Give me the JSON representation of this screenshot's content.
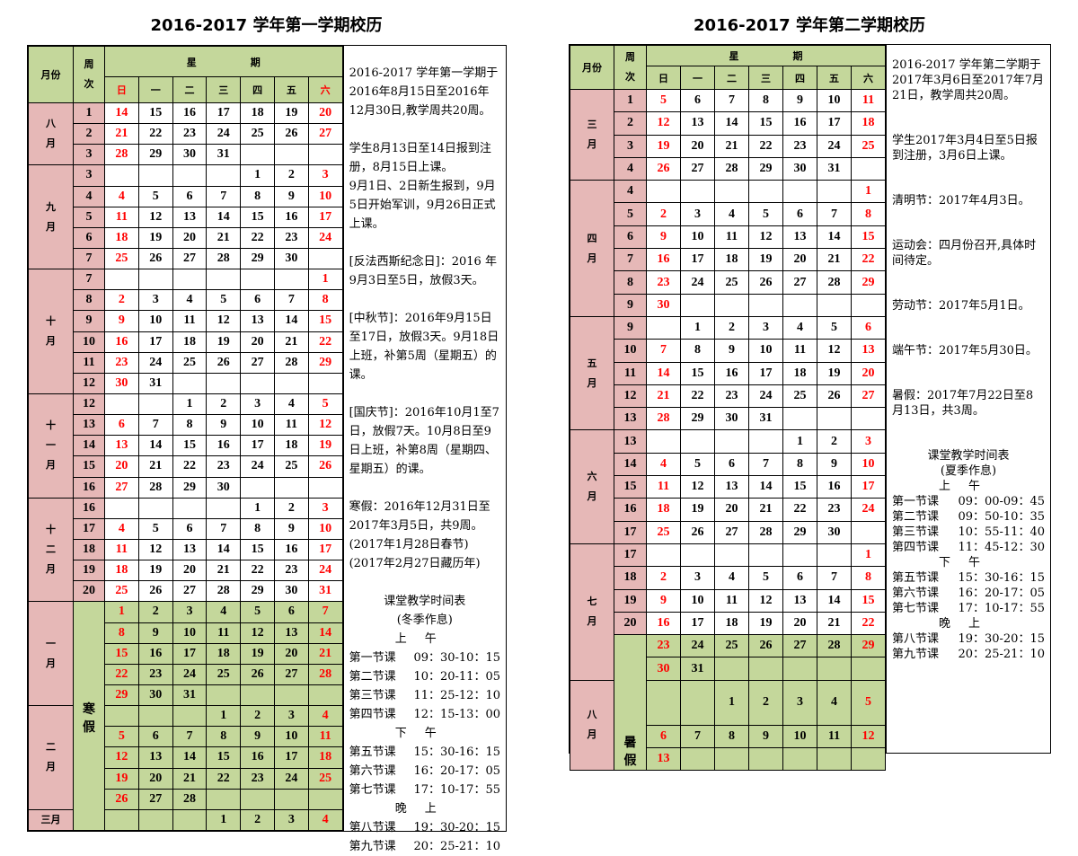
{
  "headers": {
    "month": "月份",
    "week": "周次",
    "weekday_group": "星期",
    "weekdays": [
      "日",
      "一",
      "二",
      "三",
      "四",
      "五",
      "六"
    ]
  },
  "colors": {
    "month_bg": "#e6b8b7",
    "header_bg": "#c4d79b",
    "holiday_bg": "#c4d79b",
    "weekend": "#ff0000"
  },
  "sem1": {
    "title": "2016-2017 学年第一学期校历",
    "holiday_label": "寒假",
    "months": [
      {
        "name": "八月",
        "rows": [
          {
            "w": "1",
            "d": [
              14,
              15,
              16,
              17,
              18,
              19,
              20
            ]
          },
          {
            "w": "2",
            "d": [
              21,
              22,
              23,
              24,
              25,
              26,
              27
            ]
          },
          {
            "w": "3",
            "d": [
              28,
              29,
              30,
              31,
              null,
              null,
              null
            ]
          }
        ]
      },
      {
        "name": "九月",
        "rows": [
          {
            "w": "3",
            "d": [
              null,
              null,
              null,
              null,
              1,
              2,
              3
            ]
          },
          {
            "w": "4",
            "d": [
              4,
              5,
              6,
              7,
              8,
              9,
              10
            ]
          },
          {
            "w": "5",
            "d": [
              11,
              12,
              13,
              14,
              15,
              16,
              17
            ]
          },
          {
            "w": "6",
            "d": [
              18,
              19,
              20,
              21,
              22,
              23,
              24
            ]
          },
          {
            "w": "7",
            "d": [
              25,
              26,
              27,
              28,
              29,
              30,
              null
            ]
          }
        ]
      },
      {
        "name": "十月",
        "rows": [
          {
            "w": "7",
            "d": [
              null,
              null,
              null,
              null,
              null,
              null,
              1
            ]
          },
          {
            "w": "8",
            "d": [
              2,
              3,
              4,
              5,
              6,
              7,
              8
            ]
          },
          {
            "w": "9",
            "d": [
              9,
              10,
              11,
              12,
              13,
              14,
              15
            ]
          },
          {
            "w": "10",
            "d": [
              16,
              17,
              18,
              19,
              20,
              21,
              22
            ]
          },
          {
            "w": "11",
            "d": [
              23,
              24,
              25,
              26,
              27,
              28,
              29
            ]
          },
          {
            "w": "12",
            "d": [
              30,
              31,
              null,
              null,
              null,
              null,
              null
            ]
          }
        ]
      },
      {
        "name": "十一月",
        "rows": [
          {
            "w": "12",
            "d": [
              null,
              null,
              1,
              2,
              3,
              4,
              5
            ]
          },
          {
            "w": "13",
            "d": [
              6,
              7,
              8,
              9,
              10,
              11,
              12
            ]
          },
          {
            "w": "14",
            "d": [
              13,
              14,
              15,
              16,
              17,
              18,
              19
            ]
          },
          {
            "w": "15",
            "d": [
              20,
              21,
              22,
              23,
              24,
              25,
              26
            ]
          },
          {
            "w": "16",
            "d": [
              27,
              28,
              29,
              30,
              null,
              null,
              null
            ]
          }
        ]
      },
      {
        "name": "十二月",
        "rows": [
          {
            "w": "16",
            "d": [
              null,
              null,
              null,
              null,
              1,
              2,
              3
            ]
          },
          {
            "w": "17",
            "d": [
              4,
              5,
              6,
              7,
              8,
              9,
              10
            ]
          },
          {
            "w": "18",
            "d": [
              11,
              12,
              13,
              14,
              15,
              16,
              17
            ]
          },
          {
            "w": "19",
            "d": [
              18,
              19,
              20,
              21,
              22,
              23,
              24
            ]
          },
          {
            "w": "20",
            "d": [
              25,
              26,
              27,
              28,
              29,
              30,
              31
            ]
          }
        ]
      },
      {
        "name": "一月",
        "rows": [
          {
            "h": true,
            "d": [
              1,
              2,
              3,
              4,
              5,
              6,
              7
            ]
          },
          {
            "h": true,
            "d": [
              8,
              9,
              10,
              11,
              12,
              13,
              14
            ]
          },
          {
            "h": true,
            "d": [
              15,
              16,
              17,
              18,
              19,
              20,
              21
            ]
          },
          {
            "h": true,
            "d": [
              22,
              23,
              24,
              25,
              26,
              27,
              28
            ]
          },
          {
            "h": true,
            "d": [
              29,
              30,
              31,
              null,
              null,
              null,
              null
            ]
          }
        ]
      },
      {
        "name": "二月",
        "rows": [
          {
            "h": true,
            "d": [
              null,
              null,
              null,
              1,
              2,
              3,
              4
            ]
          },
          {
            "h": true,
            "d": [
              5,
              6,
              7,
              8,
              9,
              10,
              11
            ]
          },
          {
            "h": true,
            "d": [
              12,
              13,
              14,
              15,
              16,
              17,
              18
            ]
          },
          {
            "h": true,
            "d": [
              19,
              20,
              21,
              22,
              23,
              24,
              25
            ]
          },
          {
            "h": true,
            "d": [
              26,
              27,
              28,
              null,
              null,
              null,
              null
            ]
          }
        ]
      },
      {
        "name": "三月",
        "rows": [
          {
            "h": true,
            "d": [
              null,
              null,
              null,
              1,
              2,
              3,
              4
            ]
          }
        ]
      }
    ],
    "notes": [
      "2016-2017 学年第一学期于2016年8月15日至2016年12月30日,教学周共20周。",
      "学生8月13日至14日报到注册，8月15日上课。\n9月1日、2日新生报到，9月5日开始军训，9月26日正式上课。",
      "[反法西斯纪念日]：2016 年9月3日至5日，放假3天。",
      "[中秋节]：2016年9月15日至17日，放假3天。9月18日上班，补第5周（星期五）的课。",
      "[国庆节]：2016年10月1至7日，放假7天。10月8日至9日上班，补第8周（星期四、星期五）的课。",
      "寒假：2016年12月31日至2017年3月5日，共9周。\n(2017年1月28日春节)\n(2017年2月27日藏历年)"
    ],
    "schedule": {
      "title": "课堂教学时间表",
      "subtitle": "(冬季作息)",
      "sections": [
        {
          "label": "上午",
          "items": [
            {
              "name": "第一节课",
              "time": "09：30-10：15"
            },
            {
              "name": "第二节课",
              "time": "10：20-11：05"
            },
            {
              "name": "第三节课",
              "time": "11：25-12：10"
            },
            {
              "name": "第四节课",
              "time": "12：15-13：00"
            }
          ]
        },
        {
          "label": "下午",
          "items": [
            {
              "name": "第五节课",
              "time": "15：30-16：15"
            },
            {
              "name": "第六节课",
              "time": "16：20-17：05"
            },
            {
              "name": "第七节课",
              "time": "17：10-17：55"
            }
          ]
        },
        {
          "label": "晚上",
          "items": [
            {
              "name": "第八节课",
              "time": "19：30-20：15"
            },
            {
              "name": "第九节课",
              "time": "20：25-21：10"
            }
          ]
        }
      ]
    }
  },
  "sem2": {
    "title": "2016-2017 学年第二学期校历",
    "holiday_label": "暑假",
    "months": [
      {
        "name": "三月",
        "rows": [
          {
            "w": "1",
            "d": [
              5,
              6,
              7,
              8,
              9,
              10,
              11
            ]
          },
          {
            "w": "2",
            "d": [
              12,
              13,
              14,
              15,
              16,
              17,
              18
            ]
          },
          {
            "w": "3",
            "d": [
              19,
              20,
              21,
              22,
              23,
              24,
              25
            ]
          },
          {
            "w": "4",
            "d": [
              26,
              27,
              28,
              29,
              30,
              31,
              null
            ]
          }
        ]
      },
      {
        "name": "四月",
        "rows": [
          {
            "w": "4",
            "d": [
              null,
              null,
              null,
              null,
              null,
              null,
              1
            ]
          },
          {
            "w": "5",
            "d": [
              2,
              3,
              4,
              5,
              6,
              7,
              8
            ]
          },
          {
            "w": "6",
            "d": [
              9,
              10,
              11,
              12,
              13,
              14,
              15
            ]
          },
          {
            "w": "7",
            "d": [
              16,
              17,
              18,
              19,
              20,
              21,
              22
            ]
          },
          {
            "w": "8",
            "d": [
              23,
              24,
              25,
              26,
              27,
              28,
              29
            ]
          },
          {
            "w": "9",
            "d": [
              30,
              null,
              null,
              null,
              null,
              null,
              null
            ]
          }
        ]
      },
      {
        "name": "五月",
        "rows": [
          {
            "w": "9",
            "d": [
              null,
              1,
              2,
              3,
              4,
              5,
              6
            ]
          },
          {
            "w": "10",
            "d": [
              7,
              8,
              9,
              10,
              11,
              12,
              13
            ]
          },
          {
            "w": "11",
            "d": [
              14,
              15,
              16,
              17,
              18,
              19,
              20
            ]
          },
          {
            "w": "12",
            "d": [
              21,
              22,
              23,
              24,
              25,
              26,
              27
            ]
          },
          {
            "w": "13",
            "d": [
              28,
              29,
              30,
              31,
              null,
              null,
              null
            ]
          }
        ]
      },
      {
        "name": "六月",
        "rows": [
          {
            "w": "13",
            "d": [
              null,
              null,
              null,
              null,
              1,
              2,
              3
            ]
          },
          {
            "w": "14",
            "d": [
              4,
              5,
              6,
              7,
              8,
              9,
              10
            ]
          },
          {
            "w": "15",
            "d": [
              11,
              12,
              13,
              14,
              15,
              16,
              17
            ]
          },
          {
            "w": "16",
            "d": [
              18,
              19,
              20,
              21,
              22,
              23,
              24
            ]
          },
          {
            "w": "17",
            "d": [
              25,
              26,
              27,
              28,
              29,
              30,
              null
            ]
          }
        ]
      },
      {
        "name": "七月",
        "rows": [
          {
            "w": "17",
            "d": [
              null,
              null,
              null,
              null,
              null,
              null,
              1
            ]
          },
          {
            "w": "18",
            "d": [
              2,
              3,
              4,
              5,
              6,
              7,
              8
            ]
          },
          {
            "w": "19",
            "d": [
              9,
              10,
              11,
              12,
              13,
              14,
              15
            ]
          },
          {
            "w": "20",
            "d": [
              16,
              17,
              18,
              19,
              20,
              21,
              22
            ]
          },
          {
            "h": true,
            "d": [
              23,
              24,
              25,
              26,
              27,
              28,
              29
            ]
          },
          {
            "h": true,
            "d": [
              30,
              31,
              null,
              null,
              null,
              null,
              null
            ]
          }
        ]
      },
      {
        "name": "八月",
        "rows": [
          {
            "h": true,
            "d": [
              null,
              null,
              1,
              2,
              3,
              4,
              5
            ]
          },
          {
            "h": true,
            "d": [
              6,
              7,
              8,
              9,
              10,
              11,
              12
            ]
          },
          {
            "h": true,
            "d": [
              13,
              null,
              null,
              null,
              null,
              null,
              null
            ]
          }
        ]
      }
    ],
    "notes": [
      "2016-2017 学年第二学期于2017年3月6日至2017年7月21日，教学周共20周。",
      "学生2017年3月4日至5日报到注册，3月6日上课。",
      "清明节：2017年4月3日。",
      "运动会：四月份召开,具体时间待定。",
      "劳动节：2017年5月1日。",
      "端午节：2017年5月30日。",
      "暑假：2017年7月22日至8月13日，共3周。"
    ],
    "schedule": {
      "title": "课堂教学时间表",
      "subtitle": "(夏季作息)",
      "sections": [
        {
          "label": "上午",
          "items": [
            {
              "name": "第一节课",
              "time": "09：00-09：45"
            },
            {
              "name": "第二节课",
              "time": "09：50-10：35"
            },
            {
              "name": "第三节课",
              "time": "10：55-11：40"
            },
            {
              "name": "第四节课",
              "time": "11：45-12：30"
            }
          ]
        },
        {
          "label": "下午",
          "items": [
            {
              "name": "第五节课",
              "time": "15：30-16：15"
            },
            {
              "name": "第六节课",
              "time": "16：20-17：05"
            },
            {
              "name": "第七节课",
              "time": "17：10-17：55"
            }
          ]
        },
        {
          "label": "晚上",
          "items": [
            {
              "name": "第八节课",
              "time": "19：30-20：15"
            },
            {
              "name": "第九节课",
              "time": "20：25-21：10"
            }
          ]
        }
      ]
    }
  }
}
